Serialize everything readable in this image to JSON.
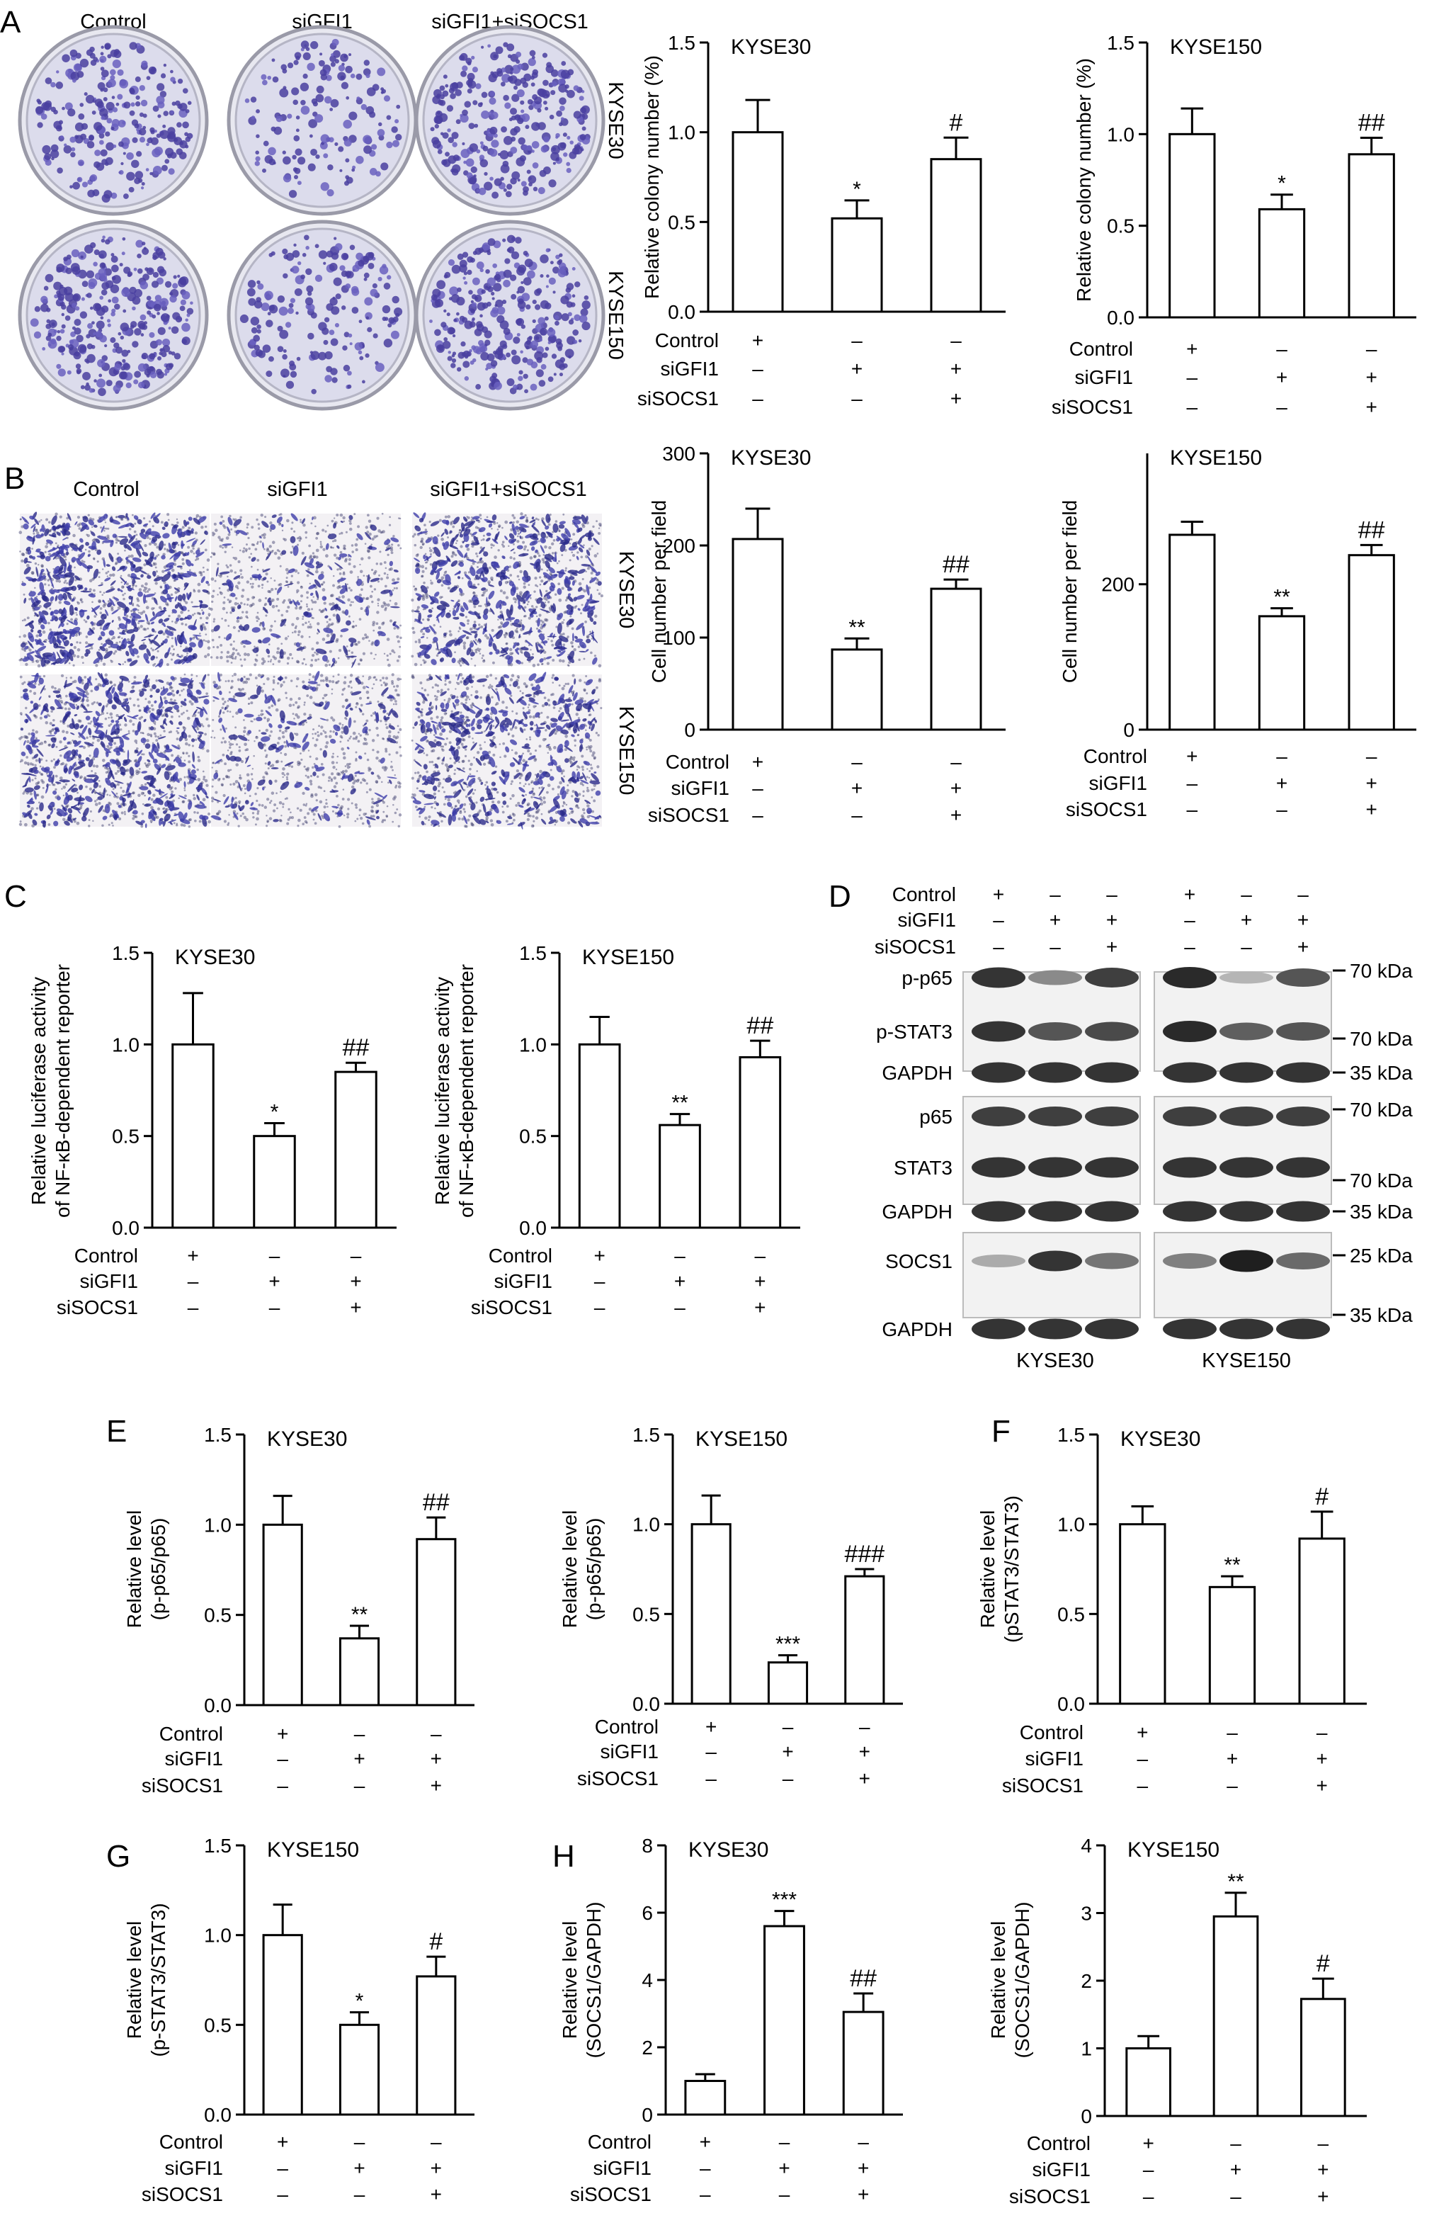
{
  "panel_letters": [
    "A",
    "B",
    "C",
    "D",
    "E",
    "F",
    "G",
    "H"
  ],
  "conditions": [
    "Control",
    "siGFI1",
    "siSOCS1"
  ],
  "signs": [
    [
      "+",
      "–",
      "–"
    ],
    [
      "–",
      "+",
      "+"
    ],
    [
      "–",
      "–",
      "+"
    ]
  ],
  "photo_panels": [
    {
      "letter": "A",
      "style": "dish",
      "columns": [
        "Control",
        "siGFI1",
        "siGFI1+siSOCS1"
      ],
      "rows": [
        "KYSE30",
        "KYSE150"
      ]
    },
    {
      "letter": "B",
      "style": "field",
      "columns": [
        "Control",
        "siGFI1",
        "siGFI1+siSOCS1"
      ],
      "rows": [
        "KYSE30",
        "KYSE150"
      ]
    }
  ],
  "western_blot": {
    "letter": "D",
    "cell_lines": [
      "KYSE30",
      "KYSE150"
    ],
    "bands": [
      "p-p65",
      "p-STAT3",
      "GAPDH",
      "p65",
      "STAT3",
      "GAPDH",
      "SOCS1",
      "GAPDH"
    ],
    "markers": [
      "70 kDa",
      "70 kDa",
      "35 kDa",
      "70 kDa",
      "70 kDa",
      "35 kDa",
      "25 kDa",
      "35 kDa"
    ],
    "intensity": [
      [
        0.85,
        0.45,
        0.8,
        0.9,
        0.25,
        0.7
      ],
      [
        0.85,
        0.7,
        0.75,
        0.9,
        0.65,
        0.7
      ],
      [
        0.85,
        0.85,
        0.85,
        0.85,
        0.85,
        0.85
      ],
      [
        0.8,
        0.8,
        0.8,
        0.8,
        0.8,
        0.8
      ],
      [
        0.85,
        0.85,
        0.85,
        0.85,
        0.85,
        0.85
      ],
      [
        0.85,
        0.85,
        0.85,
        0.85,
        0.85,
        0.85
      ],
      [
        0.3,
        0.85,
        0.55,
        0.5,
        0.95,
        0.6
      ],
      [
        0.85,
        0.85,
        0.85,
        0.85,
        0.85,
        0.85
      ]
    ]
  },
  "chart_data": [
    {
      "type": "bar",
      "panel": "A",
      "title": "KYSE30",
      "ylabel": "Relative colony number (%)",
      "categories": [
        "Control",
        "siGFI1",
        "siGFI1+siSOCS1"
      ],
      "values": [
        1.0,
        0.52,
        0.85
      ],
      "errors": [
        0.18,
        0.1,
        0.12
      ],
      "significance": [
        "",
        "*",
        "#"
      ],
      "ylim": [
        0,
        1.5
      ],
      "yticks": [
        "0.0",
        "0.5",
        "1.0",
        "1.5"
      ]
    },
    {
      "type": "bar",
      "panel": "A",
      "title": "KYSE150",
      "ylabel": "Relative colony number (%)",
      "categories": [
        "Control",
        "siGFI1",
        "siGFI1+siSOCS1"
      ],
      "values": [
        1.0,
        0.59,
        0.89
      ],
      "errors": [
        0.14,
        0.08,
        0.09
      ],
      "significance": [
        "",
        "*",
        "##"
      ],
      "ylim": [
        0,
        1.5
      ],
      "yticks": [
        "0.0",
        "0.5",
        "1.0",
        "1.5"
      ]
    },
    {
      "type": "bar",
      "panel": "B",
      "title": "KYSE30",
      "ylabel": "Cell number per field",
      "categories": [
        "Control",
        "siGFI1",
        "siGFI1+siSOCS1"
      ],
      "values": [
        207,
        87,
        153
      ],
      "errors": [
        33,
        12,
        10
      ],
      "significance": [
        "",
        "**",
        "##"
      ],
      "ylim": [
        0,
        300
      ],
      "yticks": [
        "0",
        "100",
        "200",
        "300"
      ]
    },
    {
      "type": "bar",
      "panel": "B",
      "title": "KYSE150",
      "ylabel": "Cell number per field",
      "categories": [
        "Control",
        "siGFI1",
        "siGFI1+siSOCS1"
      ],
      "values": [
        268,
        156,
        240
      ],
      "errors": [
        18,
        11,
        14
      ],
      "significance": [
        "",
        "**",
        "##"
      ],
      "ylim": [
        0,
        380
      ],
      "yticks": [
        "0",
        "200"
      ]
    },
    {
      "type": "bar",
      "panel": "C",
      "title": "KYSE30",
      "ylabel": "Relative luciferase activity of NF-κB-dependent reporter",
      "categories": [
        "Control",
        "siGFI1",
        "siGFI1+siSOCS1"
      ],
      "values": [
        1.0,
        0.5,
        0.85
      ],
      "errors": [
        0.28,
        0.07,
        0.05
      ],
      "significance": [
        "",
        "*",
        "##"
      ],
      "ylim": [
        0,
        1.5
      ],
      "yticks": [
        "0.0",
        "0.5",
        "1.0",
        "1.5"
      ]
    },
    {
      "type": "bar",
      "panel": "C",
      "title": "KYSE150",
      "ylabel": "Relative luciferase activity of NF-κB-dependent reporter",
      "categories": [
        "Control",
        "siGFI1",
        "siGFI1+siSOCS1"
      ],
      "values": [
        1.0,
        0.56,
        0.93
      ],
      "errors": [
        0.15,
        0.06,
        0.09
      ],
      "significance": [
        "",
        "**",
        "##"
      ],
      "ylim": [
        0,
        1.5
      ],
      "yticks": [
        "0.0",
        "0.5",
        "1.0",
        "1.5"
      ]
    },
    {
      "type": "bar",
      "panel": "E",
      "title": "KYSE30",
      "ylabel": "Relative level (p-p65/p65)",
      "categories": [
        "Control",
        "siGFI1",
        "siGFI1+siSOCS1"
      ],
      "values": [
        1.0,
        0.37,
        0.92
      ],
      "errors": [
        0.16,
        0.07,
        0.12
      ],
      "significance": [
        "",
        "**",
        "##"
      ],
      "ylim": [
        0,
        1.5
      ],
      "yticks": [
        "0.0",
        "0.5",
        "1.0",
        "1.5"
      ]
    },
    {
      "type": "bar",
      "panel": "E",
      "title": "KYSE150",
      "ylabel": "Relative level (p-p65/p65)",
      "categories": [
        "Control",
        "siGFI1",
        "siGFI1+siSOCS1"
      ],
      "values": [
        1.0,
        0.23,
        0.71
      ],
      "errors": [
        0.16,
        0.04,
        0.04
      ],
      "significance": [
        "",
        "***",
        "###"
      ],
      "ylim": [
        0,
        1.5
      ],
      "yticks": [
        "0.0",
        "0.5",
        "1.0",
        "1.5"
      ]
    },
    {
      "type": "bar",
      "panel": "F",
      "title": "KYSE30",
      "ylabel": "Relative level (pSTAT3/STAT3)",
      "categories": [
        "Control",
        "siGFI1",
        "siGFI1+siSOCS1"
      ],
      "values": [
        1.0,
        0.65,
        0.92
      ],
      "errors": [
        0.1,
        0.06,
        0.15
      ],
      "significance": [
        "",
        "**",
        "#"
      ],
      "ylim": [
        0,
        1.5
      ],
      "yticks": [
        "0.0",
        "0.5",
        "1.0",
        "1.5"
      ]
    },
    {
      "type": "bar",
      "panel": "G",
      "title": "KYSE150",
      "ylabel": "Relative level (p-STAT3/STAT3)",
      "categories": [
        "Control",
        "siGFI1",
        "siGFI1+siSOCS1"
      ],
      "values": [
        1.0,
        0.5,
        0.77
      ],
      "errors": [
        0.17,
        0.07,
        0.11
      ],
      "significance": [
        "",
        "*",
        "#"
      ],
      "ylim": [
        0,
        1.5
      ],
      "yticks": [
        "0.0",
        "0.5",
        "1.0",
        "1.5"
      ]
    },
    {
      "type": "bar",
      "panel": "H",
      "title": "KYSE30",
      "ylabel": "Relative level (SOCS1/GAPDH)",
      "categories": [
        "Control",
        "siGFI1",
        "siGFI1+siSOCS1"
      ],
      "values": [
        1.0,
        5.6,
        3.05
      ],
      "errors": [
        0.2,
        0.45,
        0.55
      ],
      "significance": [
        "",
        "***",
        "##"
      ],
      "ylim": [
        0,
        8
      ],
      "yticks": [
        "0",
        "2",
        "4",
        "6",
        "8"
      ]
    },
    {
      "type": "bar",
      "panel": "H",
      "title": "KYSE150",
      "ylabel": "Relative level (SOCS1/GAPDH)",
      "categories": [
        "Control",
        "siGFI1",
        "siGFI1+siSOCS1"
      ],
      "values": [
        1.0,
        2.95,
        1.73
      ],
      "errors": [
        0.18,
        0.35,
        0.3
      ],
      "significance": [
        "",
        "**",
        "#"
      ],
      "ylim": [
        0,
        4
      ],
      "yticks": [
        "0",
        "1",
        "2",
        "3",
        "4"
      ]
    }
  ]
}
